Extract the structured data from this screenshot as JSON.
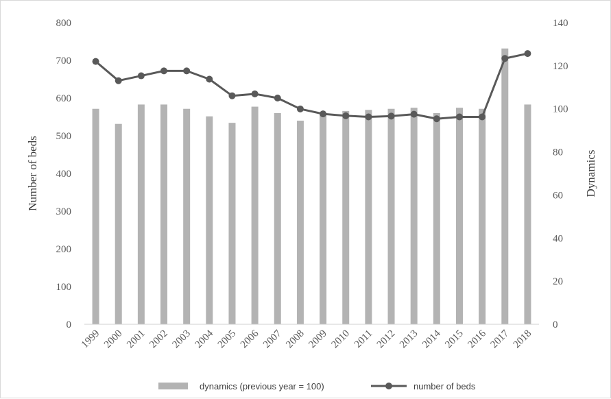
{
  "chart_data": {
    "type": "bar+line",
    "title": "",
    "categories": [
      "1999",
      "2000",
      "2001",
      "2002",
      "2003",
      "2004",
      "2005",
      "2006",
      "2007",
      "2008",
      "2009",
      "2010",
      "2011",
      "2012",
      "2013",
      "2014",
      "2015",
      "2016",
      "2017",
      "2018"
    ],
    "series": [
      {
        "name": "dynamics (previous year = 100)",
        "type": "bar",
        "axis": "right",
        "color": "#b3b3b3",
        "values": [
          100,
          93,
          102,
          102,
          100,
          96.5,
          93.5,
          101,
          98,
          94.5,
          98,
          99,
          99.5,
          100,
          100.5,
          98,
          100.5,
          100,
          128,
          102
        ]
      },
      {
        "name": "number of beds",
        "type": "line",
        "axis": "left",
        "color": "#595959",
        "values": [
          697,
          646,
          659,
          672,
          672,
          650,
          606,
          611,
          600,
          571,
          558,
          553,
          550,
          552,
          557,
          545,
          550,
          550,
          705,
          718
        ]
      }
    ],
    "ylabel": "Number of beds",
    "y2label": "Dynamics",
    "ylim": [
      0,
      800
    ],
    "y2lim": [
      0,
      140
    ],
    "yticks": [
      "0",
      "100",
      "200",
      "300",
      "400",
      "500",
      "600",
      "700",
      "800"
    ],
    "y2ticks": [
      "0",
      "20",
      "40",
      "60",
      "80",
      "100",
      "120",
      "140"
    ],
    "grid": false,
    "legend": "bottom"
  }
}
